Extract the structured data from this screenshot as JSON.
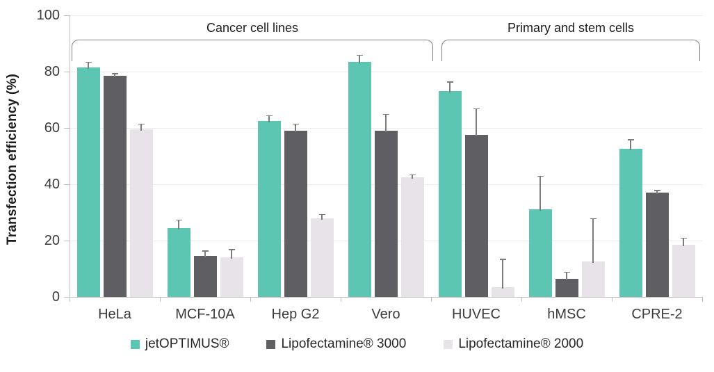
{
  "chart_data": {
    "type": "bar",
    "title": "",
    "xlabel": "",
    "ylabel": "Transfection efficiency (%)",
    "ylim": [
      0,
      100
    ],
    "yticks": [
      0,
      20,
      40,
      60,
      80,
      100
    ],
    "grid": true,
    "legend_position": "bottom",
    "categories": [
      "HeLa",
      "MCF-10A",
      "Hep G2",
      "Vero",
      "HUVEC",
      "hMSC",
      "CPRE-2"
    ],
    "series": [
      {
        "name": "jetOPTIMUS®",
        "color": "#5cc6b2",
        "values": [
          81.5,
          24.5,
          62.5,
          83.5,
          73,
          31,
          52.5
        ],
        "errors": [
          2,
          3,
          2,
          2.5,
          3.5,
          12,
          3.5
        ]
      },
      {
        "name": "Lipofectamine® 3000",
        "color": "#5f5f63",
        "values": [
          78.5,
          14.5,
          59,
          59,
          57.5,
          6.5,
          37
        ],
        "errors": [
          1,
          2,
          2.5,
          6,
          9.5,
          2.5,
          1
        ]
      },
      {
        "name": "Lipofectamine® 2000",
        "color": "#e7e3e9",
        "values": [
          59.5,
          14,
          28,
          42.5,
          3.5,
          12.5,
          18.5
        ],
        "errors": [
          2,
          3,
          1.5,
          1,
          10,
          15.5,
          2.5
        ]
      }
    ],
    "annotations": [
      {
        "label": "Cancer cell lines",
        "from_category": 0,
        "to_category": 3
      },
      {
        "label": "Primary and stem cells",
        "from_category": 4,
        "to_category": 6
      }
    ]
  },
  "colors": {
    "error_bar": "#7c7c7c",
    "gridline": "#ececec",
    "axis": "#bfbfbf",
    "tick_text": "#3b3b3b",
    "bracket": "#7f7f7f"
  }
}
